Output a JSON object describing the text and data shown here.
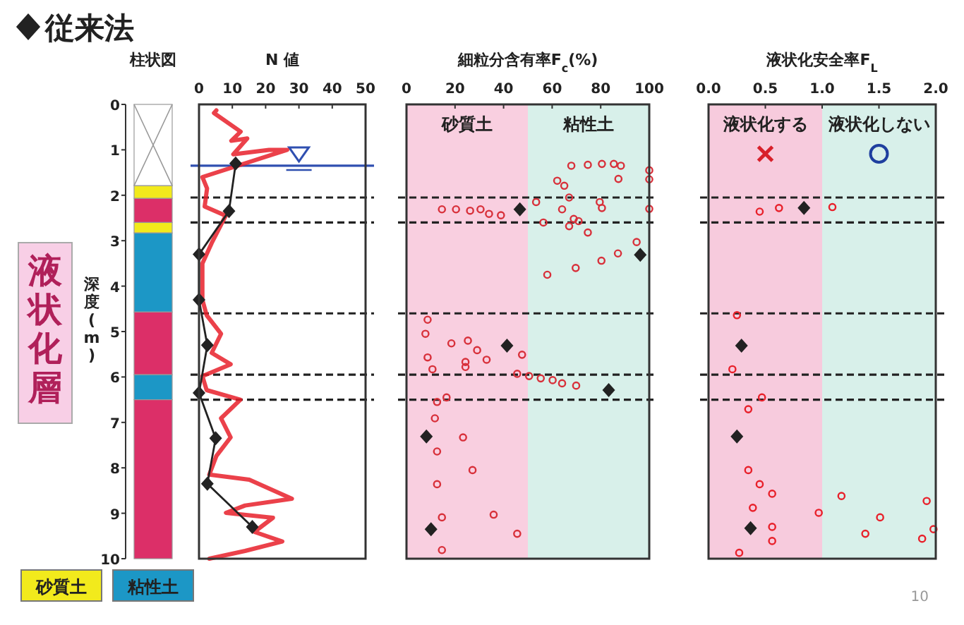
{
  "chart_data": [
    {
      "type": "bar",
      "stacked": true,
      "title": "柱状図",
      "ylabel": "深度(m)",
      "categories": [
        null
      ],
      "ylim": [
        10,
        0
      ],
      "yticks": [
        0,
        1,
        2,
        3,
        4,
        5,
        6,
        7,
        8,
        9,
        10
      ],
      "tick_labels": "y",
      "legend": "bottom",
      "annotations": [
        "液状化層"
      ],
      "series": [
        {
          "color": "#ffffff",
          "values": [
            1.79
          ]
        },
        {
          "name": "砂質土",
          "color": "#f2ea1c",
          "values": [
            0.28
          ]
        },
        {
          "color": "#dc2f68",
          "values": [
            0.53
          ]
        },
        {
          "color": "#f2ea1c",
          "values": [
            0.23
          ]
        },
        {
          "name": "粘性土",
          "color": "#1c97c6",
          "values": [
            1.74
          ]
        },
        {
          "color": "#dc2f68",
          "values": [
            1.38
          ]
        },
        {
          "color": "#1c97c6",
          "values": [
            0.55
          ]
        },
        {
          "color": "#dc2f68",
          "values": [
            3.5
          ]
        }
      ]
    },
    {
      "type": "line",
      "title": "N 値",
      "xlim": [
        0,
        50
      ],
      "xticks": [
        0,
        10,
        20,
        30,
        40,
        50
      ],
      "ylim": [
        10,
        0
      ],
      "tick_labels": "x",
      "legend": "top",
      "ref_lines": [
        {
          "axis": "y",
          "value": 1.35,
          "color": "#2f4fb0"
        },
        {
          "axis": "y",
          "value": 2.05,
          "color": "#222222",
          "line_style": "dashed"
        },
        {
          "axis": "y",
          "value": 2.6,
          "color": "#222222",
          "line_style": "dashed"
        },
        {
          "axis": "y",
          "value": 4.6,
          "color": "#222222",
          "line_style": "dashed"
        },
        {
          "axis": "y",
          "value": 5.95,
          "color": "#222222",
          "line_style": "dashed"
        },
        {
          "axis": "y",
          "value": 6.5,
          "color": "#222222",
          "line_style": "dashed"
        }
      ],
      "series": [
        {
          "color": "#e8202a",
          "marker": "none",
          "x": [
            5.2,
            4.5,
            12.5,
            9.7,
            14.5,
            10.3,
            21,
            26.5,
            1,
            2.4,
            1.7,
            8,
            6.6,
            3.8,
            1,
            1,
            2.3,
            6.6,
            3.8,
            9.5,
            1,
            2.3,
            12.4,
            6.6,
            9.5,
            5.2,
            3.1,
            15.1,
            27.9,
            13.8,
            8.1,
            22.2,
            16.6,
            25,
            13.8,
            3.1
          ],
          "values": [
            0.13,
            0.19,
            0.6,
            0.8,
            0.75,
            1.1,
            1.0,
            1.0,
            1.6,
            1.85,
            2.25,
            2.45,
            2.65,
            3.05,
            3.5,
            4.3,
            4.64,
            5.05,
            5.47,
            5.72,
            5.98,
            6.29,
            6.5,
            6.91,
            7.33,
            7.74,
            8.15,
            8.26,
            8.68,
            8.83,
            8.99,
            9.1,
            9.41,
            9.62,
            9.83,
            10.0
          ]
        },
        {
          "name": "従来法",
          "color": "#222222",
          "marker": "diamond",
          "x": [
            11,
            9,
            0,
            0,
            2.5,
            0,
            5,
            2.5,
            16
          ],
          "values": [
            1.3,
            2.35,
            3.3,
            4.3,
            5.3,
            6.35,
            7.35,
            8.35,
            9.3
          ]
        }
      ]
    },
    {
      "type": "scatter",
      "title": "細粒分含有率F$_{c}$(%)",
      "xlim": [
        0,
        100
      ],
      "xticks": [
        0,
        20,
        40,
        60,
        80,
        100
      ],
      "ylim": [
        10,
        0
      ],
      "tick_labels": "x",
      "bands": [
        {
          "axis": "x",
          "from": 0,
          "to": 50,
          "color": "#f9cfe0",
          "label": "砂質土"
        },
        {
          "axis": "x",
          "from": 50,
          "to": 100,
          "color": "#d8f0ea",
          "label": "粘性土"
        }
      ],
      "ref_lines": [
        {
          "axis": "y",
          "value": 2.05,
          "color": "#222222",
          "line_style": "dashed"
        },
        {
          "axis": "y",
          "value": 2.6,
          "color": "#222222",
          "line_style": "dashed"
        },
        {
          "axis": "y",
          "value": 4.6,
          "color": "#222222",
          "line_style": "dashed"
        },
        {
          "axis": "y",
          "value": 5.95,
          "color": "#222222",
          "line_style": "dashed"
        },
        {
          "axis": "y",
          "value": 6.5,
          "color": "#222222",
          "line_style": "dashed"
        }
      ],
      "series": [
        {
          "color": "#d8303a",
          "marker": "circle",
          "x": [
            67.9,
            74.7,
            80.5,
            85.4,
            88.3,
            87.3,
            62.1,
            65,
            100,
            100,
            67,
            79.6,
            80.5,
            14.6,
            20.4,
            26.2,
            30.5,
            34,
            38.9,
            53.4,
            64.1,
            100,
            68.9,
            70.9,
            56.4,
            67,
            74.7,
            94.8,
            87.1,
            80.3,
            69.7,
            58,
            8.7,
            7.8,
            18.5,
            8.7,
            24.3,
            10.7,
            25.3,
            29.1,
            33,
            47.6,
            24.3,
            45.6,
            50.5,
            55.3,
            60.2,
            64.1,
            69.9,
            16.5,
            12.6,
            11.7,
            23.3,
            12.6,
            27.2,
            12.6,
            35.9,
            14.6,
            45.6,
            14.6
          ],
          "values": [
            1.35,
            1.33,
            1.31,
            1.31,
            1.35,
            1.64,
            1.68,
            1.79,
            1.45,
            1.65,
            2.05,
            2.15,
            2.28,
            2.31,
            2.31,
            2.34,
            2.31,
            2.41,
            2.44,
            2.15,
            2.31,
            2.3,
            2.52,
            2.57,
            2.6,
            2.68,
            2.82,
            3.03,
            3.28,
            3.44,
            3.6,
            3.75,
            4.74,
            5.05,
            5.26,
            5.57,
            5.78,
            5.83,
            5.2,
            5.41,
            5.62,
            5.51,
            5.67,
            5.93,
            5.98,
            6.03,
            6.07,
            6.14,
            6.19,
            6.45,
            6.55,
            6.91,
            7.33,
            7.64,
            8.05,
            8.36,
            9.03,
            9.09,
            9.45,
            9.81
          ]
        },
        {
          "color": "#222222",
          "marker": "diamond",
          "x": [
            46.7,
            96.3,
            41.4,
            83.3,
            8.2,
            10.1
          ],
          "values": [
            2.31,
            3.31,
            5.31,
            6.29,
            7.31,
            9.35
          ]
        }
      ]
    },
    {
      "type": "scatter",
      "title": "液状化安全率F$_{L}$",
      "xlim": [
        0,
        2
      ],
      "xticks": [
        {
          "value": 0,
          "label": "0.0"
        },
        {
          "value": 0.5,
          "label": "0.5"
        },
        {
          "value": 1,
          "label": "1.0"
        },
        {
          "value": 1.5,
          "label": "1.5"
        },
        {
          "value": 2,
          "label": "2.0"
        }
      ],
      "ylim": [
        10,
        0
      ],
      "tick_labels": "x",
      "annotations": [
        "10"
      ],
      "bands": [
        {
          "axis": "x",
          "from": 0,
          "to": 1,
          "color": "#f7cbdd",
          "label": "液状化する"
        },
        {
          "axis": "x",
          "from": 1,
          "to": 2,
          "color": "#d8f0ea",
          "label": "液状化しない"
        }
      ],
      "ref_lines": [
        {
          "axis": "y",
          "value": 2.05,
          "color": "#222222",
          "line_style": "dashed"
        },
        {
          "axis": "y",
          "value": 2.6,
          "color": "#222222",
          "line_style": "dashed"
        },
        {
          "axis": "y",
          "value": 4.6,
          "color": "#222222",
          "line_style": "dashed"
        },
        {
          "axis": "y",
          "value": 5.95,
          "color": "#222222",
          "line_style": "dashed"
        },
        {
          "axis": "y",
          "value": 6.5,
          "color": "#222222",
          "line_style": "dashed"
        }
      ],
      "series": [
        {
          "color": "#e8202a",
          "marker": "circle",
          "x": [
            0.45,
            0.62,
            1.09,
            0.25,
            0.21,
            0.47,
            0.35,
            0.35,
            0.45,
            0.56,
            1.17,
            1.92,
            0.39,
            0.97,
            1.51,
            0.56,
            1.98,
            1.38,
            0.56,
            1.88,
            0.27
          ],
          "values": [
            2.36,
            2.28,
            2.26,
            4.64,
            5.83,
            6.45,
            6.71,
            8.05,
            8.36,
            8.57,
            8.62,
            8.73,
            8.88,
            8.99,
            9.09,
            9.3,
            9.35,
            9.45,
            9.61,
            9.56,
            9.87
          ]
        },
        {
          "color": "#222222",
          "marker": "diamond",
          "x": [
            0.84,
            0.29,
            0.25,
            0.37
          ],
          "values": [
            2.28,
            5.31,
            7.31,
            9.33
          ]
        }
      ]
    }
  ]
}
